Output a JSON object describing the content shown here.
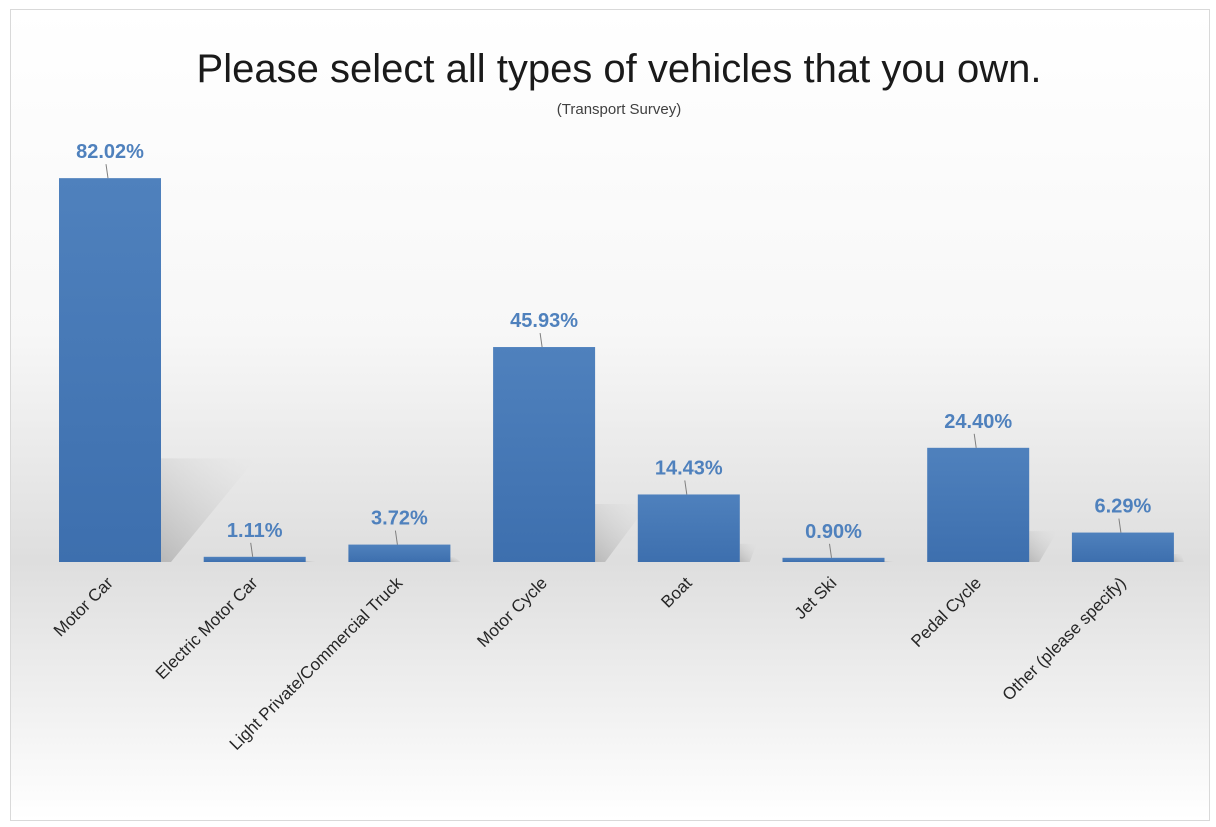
{
  "chart_data": {
    "type": "bar",
    "title": "Please select all types of vehicles that you own.",
    "subtitle": "(Transport Survey)",
    "xlabel": "",
    "ylabel": "",
    "categories": [
      "Motor Car",
      "Electric Motor Car",
      "Light Private/Commercial Truck",
      "Motor Cycle",
      "Boat",
      "Jet Ski",
      "Pedal Cycle",
      "Other (please specify)"
    ],
    "values": [
      82.02,
      1.11,
      3.72,
      45.93,
      14.43,
      0.9,
      24.4,
      6.29
    ],
    "data_labels": [
      "82.02%",
      "1.11%",
      "3.72%",
      "45.93%",
      "14.43%",
      "0.90%",
      "24.40%",
      "6.29%"
    ],
    "ylim": [
      0,
      100
    ],
    "grid": false,
    "legend": "none",
    "colors": {
      "bar_top": "#4f81bd",
      "bar_bottom": "#3d6fae",
      "label": "#4f81bd",
      "shadow": "#bfbfbf"
    }
  }
}
